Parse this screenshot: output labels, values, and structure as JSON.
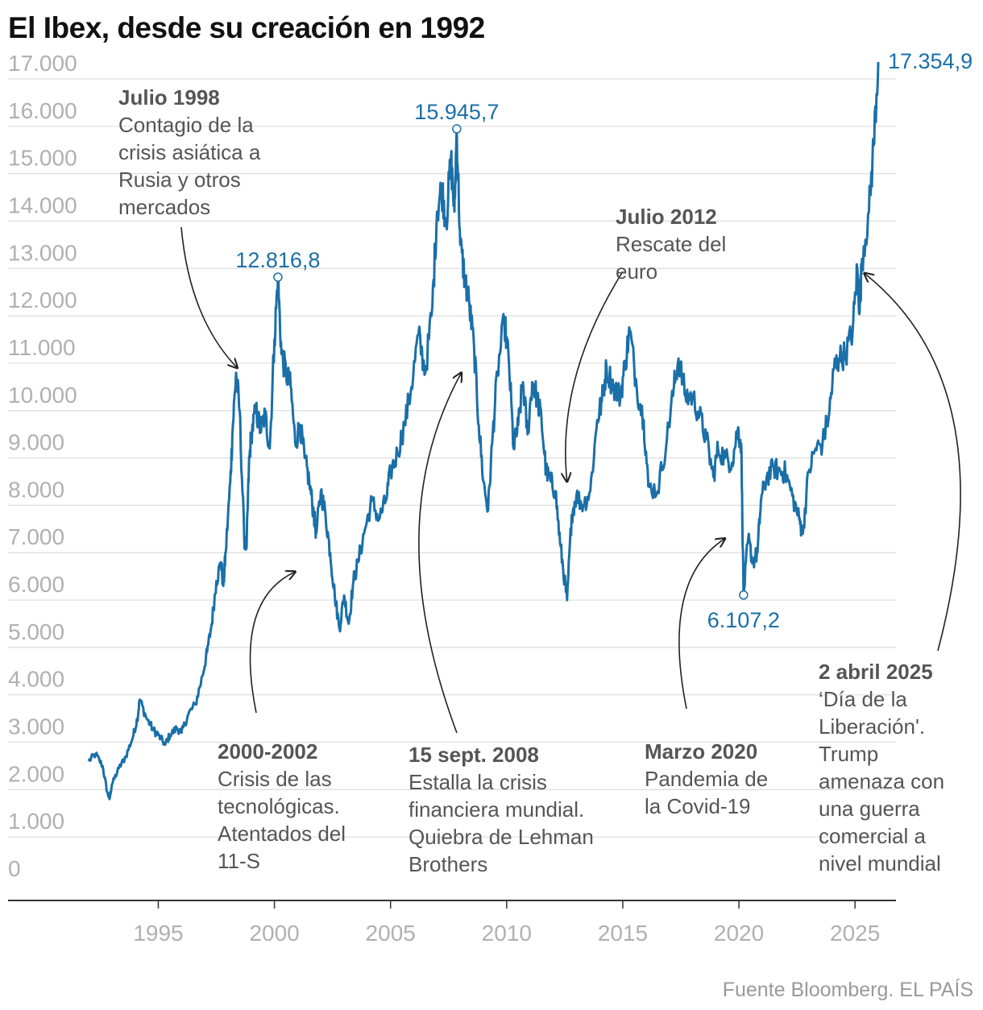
{
  "title": "El Ibex, desde su creación en 1992",
  "source": "Fuente Bloomberg. EL PAÍS",
  "colors": {
    "line": "#1a6fa8",
    "grid": "#dddddd",
    "axis": "#333333",
    "tick": "#b0b0b0",
    "annotation": "#555555"
  },
  "chart_data": {
    "type": "line",
    "title": "El Ibex, desde su creación en 1992",
    "xlabel": "",
    "ylabel": "",
    "xlim": [
      1991.6,
      2026.5
    ],
    "ylim": [
      0,
      17000
    ],
    "grid": true,
    "yticks": [
      0,
      1000,
      2000,
      3000,
      4000,
      5000,
      6000,
      7000,
      8000,
      9000,
      10000,
      11000,
      12000,
      13000,
      14000,
      15000,
      16000,
      17000
    ],
    "ytick_labels": [
      "0",
      "1.000",
      "2.000",
      "3.000",
      "4.000",
      "5.000",
      "6.000",
      "7.000",
      "8.000",
      "9.000",
      "10.000",
      "11.000",
      "12.000",
      "13.000",
      "14.000",
      "15.000",
      "16.000",
      "17.000"
    ],
    "xticks": [
      1995,
      2000,
      2005,
      2010,
      2015,
      2020,
      2025
    ],
    "xtick_labels": [
      "1995",
      "2000",
      "2005",
      "2010",
      "2015",
      "2020",
      "2025"
    ],
    "series": [
      {
        "values": [
          [
            1992.0,
            2600
          ],
          [
            1992.3,
            2750
          ],
          [
            1992.6,
            2500
          ],
          [
            1992.8,
            1950
          ],
          [
            1992.9,
            1800
          ],
          [
            1993.0,
            2100
          ],
          [
            1993.3,
            2450
          ],
          [
            1993.6,
            2700
          ],
          [
            1993.9,
            3100
          ],
          [
            1994.1,
            3500
          ],
          [
            1994.2,
            3900
          ],
          [
            1994.5,
            3500
          ],
          [
            1994.8,
            3250
          ],
          [
            1995.0,
            3150
          ],
          [
            1995.3,
            2950
          ],
          [
            1995.5,
            3150
          ],
          [
            1995.8,
            3300
          ],
          [
            1996.0,
            3200
          ],
          [
            1996.3,
            3600
          ],
          [
            1996.6,
            3800
          ],
          [
            1996.9,
            4400
          ],
          [
            1997.1,
            4900
          ],
          [
            1997.3,
            5500
          ],
          [
            1997.5,
            6400
          ],
          [
            1997.7,
            6800
          ],
          [
            1997.8,
            6300
          ],
          [
            1997.9,
            7000
          ],
          [
            1998.1,
            8500
          ],
          [
            1998.2,
            9600
          ],
          [
            1998.35,
            10800
          ],
          [
            1998.5,
            10000
          ],
          [
            1998.7,
            7300
          ],
          [
            1998.8,
            7100
          ],
          [
            1998.9,
            8800
          ],
          [
            1999.0,
            9500
          ],
          [
            1999.2,
            10000
          ],
          [
            1999.4,
            9600
          ],
          [
            1999.6,
            9900
          ],
          [
            1999.8,
            9200
          ],
          [
            2000.0,
            11500
          ],
          [
            2000.15,
            12816.8
          ],
          [
            2000.3,
            11200
          ],
          [
            2000.5,
            10800
          ],
          [
            2000.7,
            10500
          ],
          [
            2000.9,
            9300
          ],
          [
            2001.1,
            9700
          ],
          [
            2001.3,
            9000
          ],
          [
            2001.5,
            8500
          ],
          [
            2001.7,
            7800
          ],
          [
            2001.8,
            7400
          ],
          [
            2002.0,
            8300
          ],
          [
            2002.2,
            7800
          ],
          [
            2002.4,
            7000
          ],
          [
            2002.6,
            6100
          ],
          [
            2002.8,
            5400
          ],
          [
            2003.0,
            6100
          ],
          [
            2003.2,
            5500
          ],
          [
            2003.4,
            6400
          ],
          [
            2003.6,
            6800
          ],
          [
            2003.9,
            7500
          ],
          [
            2004.2,
            8100
          ],
          [
            2004.5,
            7700
          ],
          [
            2004.8,
            8100
          ],
          [
            2005.0,
            8700
          ],
          [
            2005.3,
            9100
          ],
          [
            2005.6,
            9700
          ],
          [
            2005.9,
            10500
          ],
          [
            2006.2,
            11600
          ],
          [
            2006.5,
            10800
          ],
          [
            2006.8,
            12200
          ],
          [
            2007.0,
            14200
          ],
          [
            2007.2,
            14700
          ],
          [
            2007.4,
            14000
          ],
          [
            2007.6,
            15300
          ],
          [
            2007.75,
            14200
          ],
          [
            2007.85,
            15945.7
          ],
          [
            2008.0,
            13500
          ],
          [
            2008.2,
            12800
          ],
          [
            2008.4,
            12200
          ],
          [
            2008.6,
            11300
          ],
          [
            2008.8,
            9700
          ],
          [
            2009.0,
            8500
          ],
          [
            2009.2,
            7900
          ],
          [
            2009.4,
            9500
          ],
          [
            2009.6,
            10800
          ],
          [
            2009.9,
            11900
          ],
          [
            2010.1,
            11000
          ],
          [
            2010.3,
            9200
          ],
          [
            2010.5,
            9700
          ],
          [
            2010.7,
            10600
          ],
          [
            2010.9,
            9500
          ],
          [
            2011.1,
            10600
          ],
          [
            2011.3,
            10300
          ],
          [
            2011.5,
            9800
          ],
          [
            2011.7,
            8700
          ],
          [
            2011.9,
            8500
          ],
          [
            2012.1,
            8300
          ],
          [
            2012.3,
            7200
          ],
          [
            2012.5,
            6400
          ],
          [
            2012.6,
            6000
          ],
          [
            2012.8,
            7800
          ],
          [
            2013.0,
            8200
          ],
          [
            2013.3,
            8000
          ],
          [
            2013.6,
            8300
          ],
          [
            2013.9,
            9800
          ],
          [
            2014.1,
            10200
          ],
          [
            2014.3,
            10900
          ],
          [
            2014.6,
            10500
          ],
          [
            2014.9,
            10300
          ],
          [
            2015.1,
            11000
          ],
          [
            2015.3,
            11700
          ],
          [
            2015.6,
            10500
          ],
          [
            2015.9,
            9800
          ],
          [
            2016.1,
            8400
          ],
          [
            2016.5,
            8300
          ],
          [
            2016.9,
            9400
          ],
          [
            2017.2,
            10500
          ],
          [
            2017.4,
            11100
          ],
          [
            2017.7,
            10300
          ],
          [
            2018.0,
            10300
          ],
          [
            2018.3,
            9900
          ],
          [
            2018.6,
            9400
          ],
          [
            2018.9,
            8600
          ],
          [
            2019.1,
            9200
          ],
          [
            2019.4,
            9000
          ],
          [
            2019.7,
            8900
          ],
          [
            2019.95,
            9600
          ],
          [
            2020.1,
            9300
          ],
          [
            2020.2,
            6107.2
          ],
          [
            2020.4,
            7300
          ],
          [
            2020.6,
            6800
          ],
          [
            2020.8,
            7000
          ],
          [
            2020.95,
            8100
          ],
          [
            2021.2,
            8600
          ],
          [
            2021.5,
            8800
          ],
          [
            2021.8,
            8700
          ],
          [
            2022.0,
            8700
          ],
          [
            2022.3,
            8200
          ],
          [
            2022.6,
            7700
          ],
          [
            2022.75,
            7400
          ],
          [
            2023.0,
            8700
          ],
          [
            2023.3,
            9200
          ],
          [
            2023.6,
            9300
          ],
          [
            2023.9,
            10000
          ],
          [
            2024.1,
            10900
          ],
          [
            2024.3,
            11100
          ],
          [
            2024.6,
            11200
          ],
          [
            2024.9,
            11700
          ],
          [
            2025.1,
            13000
          ],
          [
            2025.2,
            12100
          ],
          [
            2025.3,
            13200
          ],
          [
            2025.6,
            14200
          ],
          [
            2025.8,
            15600
          ],
          [
            2026.0,
            17354.9
          ]
        ]
      }
    ],
    "peak_labels": [
      {
        "x": 2000.15,
        "y": 12816.8,
        "label": "12.816,8",
        "position": "above"
      },
      {
        "x": 2007.85,
        "y": 15945.7,
        "label": "15.945,7",
        "position": "above"
      },
      {
        "x": 2020.2,
        "y": 6107.2,
        "label": "6.107,2",
        "position": "below"
      },
      {
        "x": 2026.0,
        "y": 17354.9,
        "label": "17.354,9",
        "position": "right"
      }
    ],
    "annotations": [
      {
        "id": "ann-1998",
        "title": "Julio 1998",
        "lines": [
          "Contagio de la",
          "crisis asiática a",
          "Rusia y otros",
          "mercados"
        ],
        "arrow_to": [
          1998.4,
          10900
        ]
      },
      {
        "id": "ann-2000",
        "title": "2000-2002",
        "lines": [
          "Crisis de las",
          "tecnológicas.",
          "Atentados del",
          "11-S"
        ],
        "arrow_to": [
          2000.9,
          6600
        ]
      },
      {
        "id": "ann-2008",
        "title": "15 sept. 2008",
        "lines": [
          "Estalla la crisis",
          "financiera mundial.",
          "Quiebra de Lehman",
          "Brothers"
        ],
        "arrow_to": [
          2008.05,
          10800
        ]
      },
      {
        "id": "ann-2012",
        "title": "Julio 2012",
        "lines": [
          "Rescate del",
          "euro"
        ],
        "arrow_to": [
          2012.6,
          8500
        ]
      },
      {
        "id": "ann-2020",
        "title": "Marzo 2020",
        "lines": [
          "Pandemia de",
          "la Covid-19"
        ],
        "arrow_to": [
          2019.4,
          7300
        ]
      },
      {
        "id": "ann-2025",
        "title": "2 abril 2025",
        "lines": [
          "‘Día de la",
          "Liberación'.",
          "Trump",
          "amenaza con",
          "una guerra",
          "comercial a",
          "nivel mundial"
        ],
        "arrow_to": [
          2025.4,
          12900
        ]
      }
    ]
  }
}
